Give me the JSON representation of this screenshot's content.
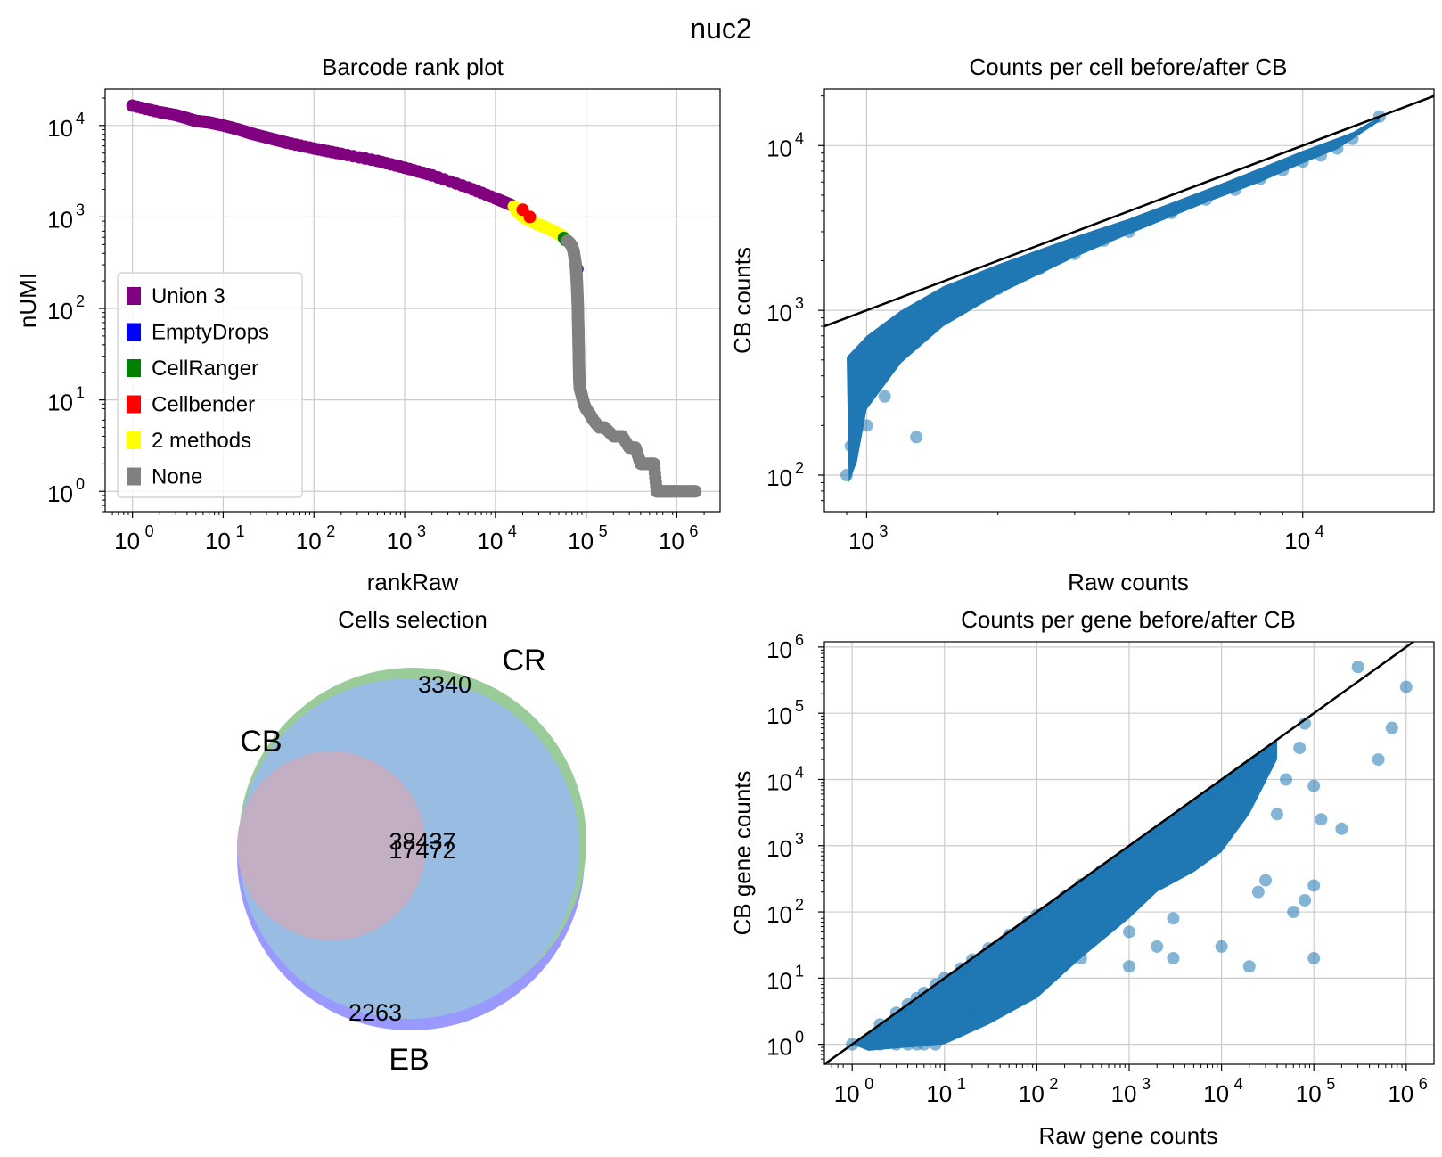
{
  "figure": {
    "suptitle": "nuc2"
  },
  "colors": {
    "union3": "#800080",
    "emptydrops": "#0000ff",
    "cellranger": "#008000",
    "cellbender": "#ff0000",
    "two_methods": "#ffff00",
    "none": "#808080",
    "scatter": "#1f77b4",
    "venn_cr": "#99cc99",
    "venn_eb": "#9999ff",
    "venn_cb": "#ffb3b3",
    "venn_main": "#99bce3",
    "venn_inner": "#c2afc4",
    "grid": "#cccccc"
  },
  "chart_data": [
    {
      "id": "rank",
      "type": "scatter",
      "title": "Barcode rank plot",
      "xlabel": "rankRaw",
      "ylabel": "nUMI",
      "xscale": "log",
      "yscale": "log",
      "xlim": [
        0.5,
        3000000
      ],
      "ylim": [
        0.6,
        25000
      ],
      "xticks": [
        {
          "base": "10",
          "exp": "0",
          "v": 1
        },
        {
          "base": "10",
          "exp": "1",
          "v": 10
        },
        {
          "base": "10",
          "exp": "2",
          "v": 100
        },
        {
          "base": "10",
          "exp": "3",
          "v": 1000
        },
        {
          "base": "10",
          "exp": "4",
          "v": 10000
        },
        {
          "base": "10",
          "exp": "5",
          "v": 100000
        },
        {
          "base": "10",
          "exp": "6",
          "v": 1000000
        }
      ],
      "yticks": [
        {
          "base": "10",
          "exp": "0",
          "v": 1
        },
        {
          "base": "10",
          "exp": "1",
          "v": 10
        },
        {
          "base": "10",
          "exp": "2",
          "v": 100
        },
        {
          "base": "10",
          "exp": "3",
          "v": 1000
        },
        {
          "base": "10",
          "exp": "4",
          "v": 10000
        }
      ],
      "grid": true,
      "legend": {
        "placement": "lower-left",
        "entries": [
          {
            "label": "Union 3",
            "color": "#800080"
          },
          {
            "label": "EmptyDrops",
            "color": "#0000ff"
          },
          {
            "label": "CellRanger",
            "color": "#008000"
          },
          {
            "label": "Cellbender",
            "color": "#ff0000"
          },
          {
            "label": "2 methods",
            "color": "#ffff00"
          },
          {
            "label": "None",
            "color": "#808080"
          }
        ]
      },
      "series": [
        {
          "name": "Union 3",
          "color": "#800080",
          "x": [
            1,
            2,
            3,
            4,
            5,
            6,
            7,
            8,
            10,
            15,
            20,
            30,
            50,
            100,
            200,
            500,
            1000,
            2000,
            5000,
            10000,
            15000
          ],
          "y": [
            16500,
            14000,
            13000,
            12000,
            11200,
            11000,
            10800,
            10500,
            10000,
            9000,
            8200,
            7400,
            6500,
            5600,
            4900,
            4100,
            3450,
            2850,
            2100,
            1600,
            1350
          ]
        },
        {
          "name": "2 methods",
          "color": "#ffff00",
          "x": [
            16000,
            18000,
            22000,
            25000,
            30000,
            35000,
            40000,
            45000,
            50000,
            55000,
            58000
          ],
          "y": [
            1300,
            1100,
            950,
            900,
            820,
            780,
            730,
            690,
            650,
            620,
            580
          ]
        },
        {
          "name": "CellRanger",
          "color": "#008000",
          "x": [
            57000,
            59000
          ],
          "y": [
            590,
            560
          ]
        },
        {
          "name": "Cellbender",
          "color": "#ff0000",
          "x": [
            20000,
            24000
          ],
          "y": [
            1200,
            1000
          ]
        },
        {
          "name": "EmptyDrops",
          "color": "#0000ff",
          "x": [
            80000
          ],
          "y": [
            270
          ]
        },
        {
          "name": "None",
          "color": "#808080",
          "x": [
            62000,
            66000,
            70000,
            73000,
            75000,
            77000,
            78000,
            79000,
            80000,
            81000,
            81500,
            82000,
            82500,
            83000,
            83500,
            84000,
            85000,
            86000,
            88000,
            90000,
            95000,
            100000,
            110000,
            120000,
            140000,
            160000,
            200000,
            250000,
            300000,
            350000,
            400000,
            450000,
            500000,
            520000,
            560000,
            600000,
            650000,
            700000,
            800000,
            900000,
            1000000,
            1200000,
            1400000,
            1600000
          ],
          "y": [
            550,
            520,
            480,
            420,
            350,
            300,
            250,
            200,
            150,
            110,
            80,
            60,
            45,
            35,
            25,
            18,
            14,
            13,
            12,
            11,
            9,
            8,
            7,
            6,
            5,
            5,
            4,
            4,
            3,
            3,
            2,
            2,
            2,
            2,
            2,
            1,
            1,
            1,
            1,
            1,
            1,
            1,
            1,
            1
          ]
        }
      ]
    },
    {
      "id": "cell_counts",
      "type": "scatter",
      "title": "Counts per cell before/after CB",
      "xlabel": "Raw counts",
      "ylabel": "CB counts",
      "xscale": "log",
      "yscale": "log",
      "xlim": [
        800,
        20000
      ],
      "ylim": [
        60,
        22000
      ],
      "xticks": [
        {
          "base": "10",
          "exp": "3",
          "v": 1000
        },
        {
          "base": "10",
          "exp": "4",
          "v": 10000
        }
      ],
      "yticks": [
        {
          "base": "10",
          "exp": "2",
          "v": 100
        },
        {
          "base": "10",
          "exp": "3",
          "v": 1000
        },
        {
          "base": "10",
          "exp": "4",
          "v": 10000
        }
      ],
      "grid": true,
      "identity_line": true,
      "series": [
        {
          "name": "",
          "color": "#1f77b4",
          "x": [
            900,
            920,
            950,
            980,
            1000,
            1050,
            1100,
            1150,
            1200,
            1300,
            1400,
            1500,
            1600,
            1800,
            2000,
            2200,
            2500,
            3000,
            3500,
            4000,
            5000,
            6000,
            7000,
            8000,
            9000,
            10000,
            11000,
            12000,
            13000,
            15000,
            1000,
            1100,
            1300,
            950
          ],
          "y": [
            100,
            150,
            220,
            300,
            380,
            450,
            500,
            550,
            600,
            700,
            800,
            900,
            1000,
            1200,
            1350,
            1550,
            1800,
            2200,
            2650,
            3000,
            3900,
            4700,
            5400,
            6300,
            7100,
            8000,
            8700,
            9600,
            11000,
            15000,
            200,
            300,
            170,
            500
          ]
        }
      ]
    },
    {
      "id": "venn",
      "type": "venn",
      "title": "Cells selection",
      "set_labels": [
        "CR",
        "CB",
        "EB"
      ],
      "region_labels": [
        "3340",
        "38437",
        "17472",
        "2263"
      ]
    },
    {
      "id": "gene_counts",
      "type": "scatter",
      "title": "Counts per gene before/after CB",
      "xlabel": "Raw gene counts",
      "ylabel": "CB gene counts",
      "xscale": "log",
      "yscale": "log",
      "xlim": [
        0.5,
        2000000
      ],
      "ylim": [
        0.5,
        1200000
      ],
      "xticks": [
        {
          "base": "10",
          "exp": "0",
          "v": 1
        },
        {
          "base": "10",
          "exp": "1",
          "v": 10
        },
        {
          "base": "10",
          "exp": "2",
          "v": 100
        },
        {
          "base": "10",
          "exp": "3",
          "v": 1000
        },
        {
          "base": "10",
          "exp": "4",
          "v": 10000
        },
        {
          "base": "10",
          "exp": "5",
          "v": 100000
        },
        {
          "base": "10",
          "exp": "6",
          "v": 1000000
        }
      ],
      "yticks": [
        {
          "base": "10",
          "exp": "0",
          "v": 1
        },
        {
          "base": "10",
          "exp": "1",
          "v": 10
        },
        {
          "base": "10",
          "exp": "2",
          "v": 100
        },
        {
          "base": "10",
          "exp": "3",
          "v": 1000
        },
        {
          "base": "10",
          "exp": "4",
          "v": 10000
        },
        {
          "base": "10",
          "exp": "5",
          "v": 100000
        },
        {
          "base": "10",
          "exp": "6",
          "v": 1000000
        }
      ],
      "grid": true,
      "identity_line": true,
      "series": [
        {
          "name": "",
          "color": "#1f77b4",
          "x": [
            1,
            2,
            3,
            4,
            5,
            6,
            8,
            10,
            15,
            20,
            30,
            50,
            80,
            100,
            200,
            300,
            500,
            1000,
            2000,
            3000,
            5000,
            8000,
            10000,
            15000,
            20000,
            30000,
            2,
            3,
            4,
            5,
            6,
            8,
            10,
            20,
            50,
            100,
            300,
            1000,
            3000,
            10000,
            20000,
            100000,
            200000,
            300000,
            50000,
            70000,
            80000,
            100000,
            500000,
            700000,
            1000000,
            40000,
            60000,
            30000,
            25000,
            80000,
            120000,
            3000,
            2000,
            1000,
            100000
          ],
          "y": [
            1,
            2,
            3,
            4,
            5,
            6,
            8,
            10,
            14,
            19,
            28,
            45,
            70,
            90,
            170,
            260,
            420,
            800,
            1500,
            2200,
            3500,
            5500,
            7000,
            10000,
            13000,
            20000,
            1,
            1,
            1,
            1,
            1,
            1,
            2,
            3,
            6,
            10,
            20,
            50,
            80,
            30,
            15,
            250,
            1800,
            500000,
            10000,
            30000,
            70000,
            8000,
            20000,
            60000,
            250000,
            3000,
            100,
            300,
            200,
            150,
            2500,
            20,
            30,
            15,
            20
          ],
          "text": "Raw gene counts"
        }
      ]
    }
  ]
}
